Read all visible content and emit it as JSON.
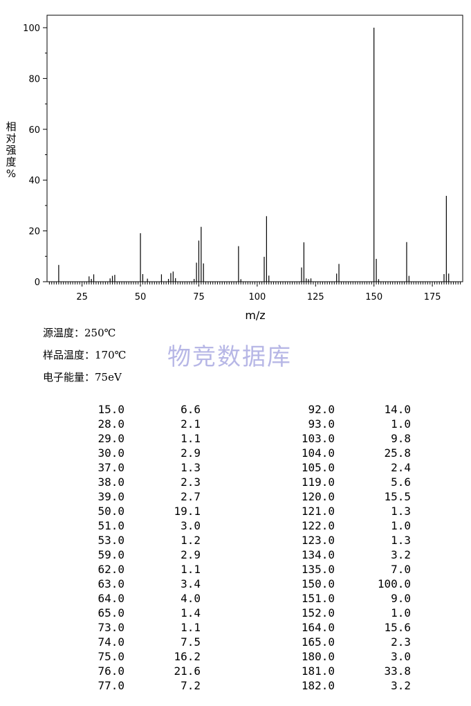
{
  "chart_data": {
    "type": "bar",
    "xlabel": "m/z",
    "ylabel_chars": [
      "相",
      "对",
      "强",
      "度",
      "%"
    ],
    "xlim": [
      10,
      188
    ],
    "ylim": [
      0,
      100
    ],
    "xticks": [
      25,
      50,
      75,
      100,
      125,
      150,
      175
    ],
    "yticks": [
      0,
      20,
      40,
      60,
      80,
      100
    ],
    "grid": false,
    "peaks": [
      {
        "mz": 15.0,
        "intensity": 6.6
      },
      {
        "mz": 28.0,
        "intensity": 2.1
      },
      {
        "mz": 29.0,
        "intensity": 1.1
      },
      {
        "mz": 30.0,
        "intensity": 2.9
      },
      {
        "mz": 37.0,
        "intensity": 1.3
      },
      {
        "mz": 38.0,
        "intensity": 2.3
      },
      {
        "mz": 39.0,
        "intensity": 2.7
      },
      {
        "mz": 50.0,
        "intensity": 19.1
      },
      {
        "mz": 51.0,
        "intensity": 3.0
      },
      {
        "mz": 53.0,
        "intensity": 1.2
      },
      {
        "mz": 59.0,
        "intensity": 2.9
      },
      {
        "mz": 62.0,
        "intensity": 1.1
      },
      {
        "mz": 63.0,
        "intensity": 3.4
      },
      {
        "mz": 64.0,
        "intensity": 4.0
      },
      {
        "mz": 65.0,
        "intensity": 1.4
      },
      {
        "mz": 73.0,
        "intensity": 1.1
      },
      {
        "mz": 74.0,
        "intensity": 7.5
      },
      {
        "mz": 75.0,
        "intensity": 16.2
      },
      {
        "mz": 76.0,
        "intensity": 21.6
      },
      {
        "mz": 77.0,
        "intensity": 7.2
      },
      {
        "mz": 92.0,
        "intensity": 14.0
      },
      {
        "mz": 93.0,
        "intensity": 1.0
      },
      {
        "mz": 103.0,
        "intensity": 9.8
      },
      {
        "mz": 104.0,
        "intensity": 25.8
      },
      {
        "mz": 105.0,
        "intensity": 2.4
      },
      {
        "mz": 119.0,
        "intensity": 5.6
      },
      {
        "mz": 120.0,
        "intensity": 15.5
      },
      {
        "mz": 121.0,
        "intensity": 1.3
      },
      {
        "mz": 122.0,
        "intensity": 1.0
      },
      {
        "mz": 123.0,
        "intensity": 1.3
      },
      {
        "mz": 134.0,
        "intensity": 3.2
      },
      {
        "mz": 135.0,
        "intensity": 7.0
      },
      {
        "mz": 150.0,
        "intensity": 100.0
      },
      {
        "mz": 151.0,
        "intensity": 9.0
      },
      {
        "mz": 152.0,
        "intensity": 1.0
      },
      {
        "mz": 164.0,
        "intensity": 15.6
      },
      {
        "mz": 165.0,
        "intensity": 2.3
      },
      {
        "mz": 180.0,
        "intensity": 3.0
      },
      {
        "mz": 181.0,
        "intensity": 33.8
      },
      {
        "mz": 182.0,
        "intensity": 3.2
      }
    ]
  },
  "info": [
    {
      "label": "源温度：",
      "value": "250℃"
    },
    {
      "label": "样品温度：",
      "value": "170℃"
    },
    {
      "label": "电子能量：",
      "value": "75eV"
    }
  ],
  "watermark": "物竞数据库",
  "table": {
    "left": [
      [
        "15.0",
        "6.6"
      ],
      [
        "28.0",
        "2.1"
      ],
      [
        "29.0",
        "1.1"
      ],
      [
        "30.0",
        "2.9"
      ],
      [
        "37.0",
        "1.3"
      ],
      [
        "38.0",
        "2.3"
      ],
      [
        "39.0",
        "2.7"
      ],
      [
        "50.0",
        "19.1"
      ],
      [
        "51.0",
        "3.0"
      ],
      [
        "53.0",
        "1.2"
      ],
      [
        "59.0",
        "2.9"
      ],
      [
        "62.0",
        "1.1"
      ],
      [
        "63.0",
        "3.4"
      ],
      [
        "64.0",
        "4.0"
      ],
      [
        "65.0",
        "1.4"
      ],
      [
        "73.0",
        "1.1"
      ],
      [
        "74.0",
        "7.5"
      ],
      [
        "75.0",
        "16.2"
      ],
      [
        "76.0",
        "21.6"
      ],
      [
        "77.0",
        "7.2"
      ]
    ],
    "right": [
      [
        "92.0",
        "14.0"
      ],
      [
        "93.0",
        "1.0"
      ],
      [
        "103.0",
        "9.8"
      ],
      [
        "104.0",
        "25.8"
      ],
      [
        "105.0",
        "2.4"
      ],
      [
        "119.0",
        "5.6"
      ],
      [
        "120.0",
        "15.5"
      ],
      [
        "121.0",
        "1.3"
      ],
      [
        "122.0",
        "1.0"
      ],
      [
        "123.0",
        "1.3"
      ],
      [
        "134.0",
        "3.2"
      ],
      [
        "135.0",
        "7.0"
      ],
      [
        "150.0",
        "100.0"
      ],
      [
        "151.0",
        "9.0"
      ],
      [
        "152.0",
        "1.0"
      ],
      [
        "164.0",
        "15.6"
      ],
      [
        "165.0",
        "2.3"
      ],
      [
        "180.0",
        "3.0"
      ],
      [
        "181.0",
        "33.8"
      ],
      [
        "182.0",
        "3.2"
      ]
    ]
  }
}
